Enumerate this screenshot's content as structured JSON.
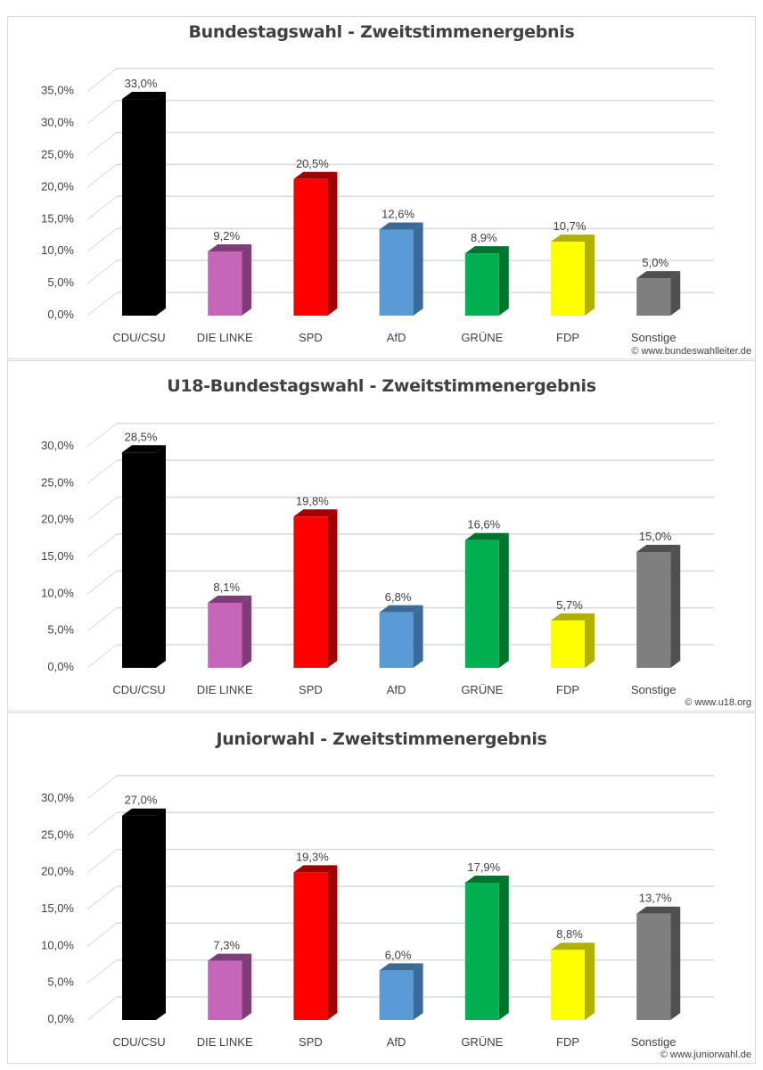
{
  "chart_data": [
    {
      "type": "bar",
      "title": "Bundestagswahl - Zweitstimmenergebnis",
      "source": "© www.bundeswahlleiter.de",
      "categories": [
        "CDU/CSU",
        "DIE LINKE",
        "SPD",
        "AfD",
        "GRÜNE",
        "FDP",
        "Sonstige"
      ],
      "values": [
        33.0,
        9.2,
        20.5,
        12.6,
        8.9,
        10.7,
        5.0
      ],
      "value_labels": [
        "33,0%",
        "9,2%",
        "20,5%",
        "12,6%",
        "8,9%",
        "10,7%",
        "5,0%"
      ],
      "yticks": [
        "0,0%",
        "5,0%",
        "10,0%",
        "15,0%",
        "20,0%",
        "25,0%",
        "30,0%",
        "35,0%"
      ],
      "ylim": [
        0,
        35
      ],
      "xlabel": "",
      "ylabel": "",
      "grid": true
    },
    {
      "type": "bar",
      "title": "U18-Bundestagswahl - Zweitstimmenergebnis",
      "source": "© www.u18.org",
      "categories": [
        "CDU/CSU",
        "DIE LINKE",
        "SPD",
        "AfD",
        "GRÜNE",
        "FDP",
        "Sonstige"
      ],
      "values": [
        28.5,
        8.1,
        19.8,
        6.8,
        16.6,
        5.7,
        15.0
      ],
      "value_labels": [
        "28,5%",
        "8,1%",
        "19,8%",
        "6,8%",
        "16,6%",
        "5,7%",
        "15,0%"
      ],
      "yticks": [
        "0,0%",
        "5,0%",
        "10,0%",
        "15,0%",
        "20,0%",
        "25,0%",
        "30,0%"
      ],
      "ylim": [
        0,
        30
      ],
      "xlabel": "",
      "ylabel": "",
      "grid": true
    },
    {
      "type": "bar",
      "title": "Juniorwahl - Zweitstimmenergebnis",
      "source": "© www.juniorwahl.de",
      "categories": [
        "CDU/CSU",
        "DIE LINKE",
        "SPD",
        "AfD",
        "GRÜNE",
        "FDP",
        "Sonstige"
      ],
      "values": [
        27.0,
        7.3,
        19.3,
        6.0,
        17.9,
        8.8,
        13.7
      ],
      "value_labels": [
        "27,0%",
        "7,3%",
        "19,3%",
        "6,0%",
        "17,9%",
        "8,8%",
        "13,7%"
      ],
      "yticks": [
        "0,0%",
        "5,0%",
        "10,0%",
        "15,0%",
        "20,0%",
        "25,0%",
        "30,0%"
      ],
      "ylim": [
        0,
        30
      ],
      "xlabel": "",
      "ylabel": "",
      "grid": true
    }
  ],
  "colors": {
    "front": [
      "#000000",
      "#c665b9",
      "#ff0000",
      "#5b9bd5",
      "#00b050",
      "#ffff00",
      "#7f7f7f"
    ],
    "side": [
      "#000000",
      "#7e3d76",
      "#a00000",
      "#3a6a96",
      "#00742f",
      "#b0b000",
      "#4f4f4f"
    ],
    "grid": "#d9d9d9"
  }
}
